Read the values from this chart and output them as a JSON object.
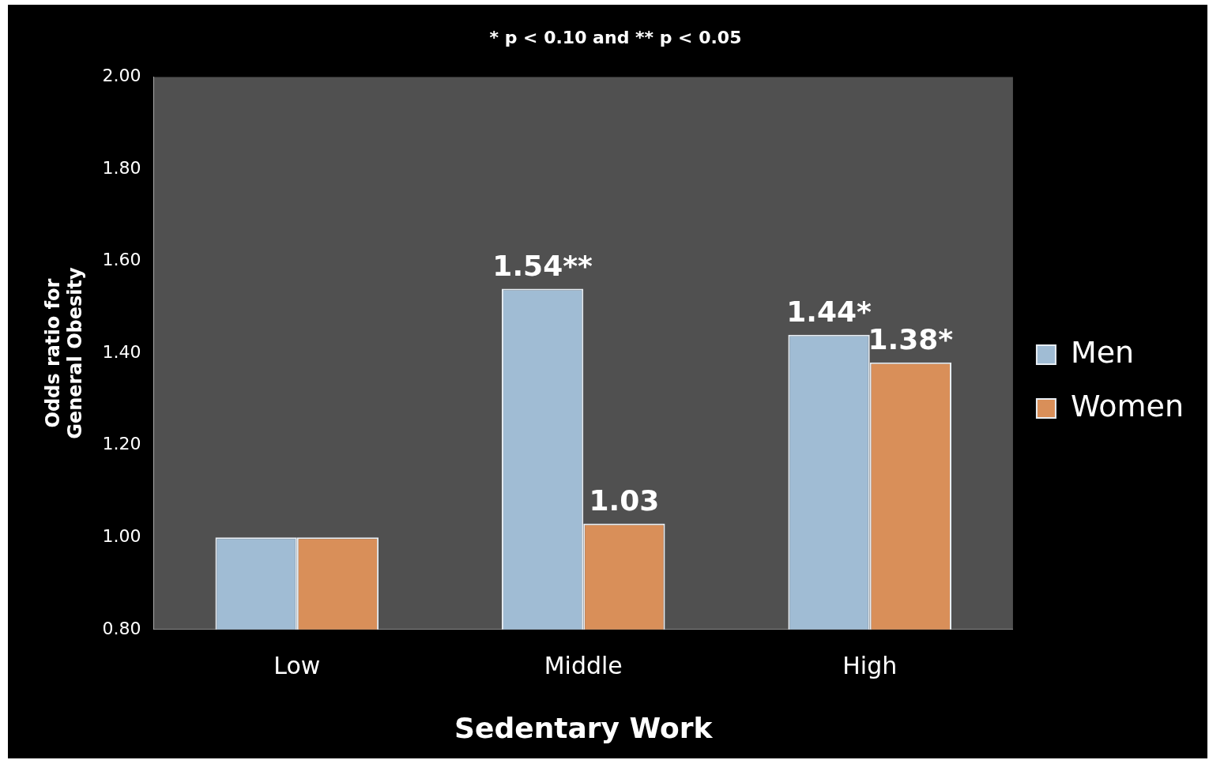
{
  "chart_data": {
    "type": "bar",
    "title": "* p < 0.10 and ** p < 0.05",
    "xlabel": "Sedentary Work",
    "ylabel": "Odds ratio for General Obesity",
    "categories": [
      "Low",
      "Middle",
      "High"
    ],
    "series": [
      {
        "name": "Men",
        "color": "#a0bcd4",
        "values": [
          1.0,
          1.54,
          1.44
        ],
        "value_labels": [
          null,
          "1.54**",
          "1.44*"
        ]
      },
      {
        "name": "Women",
        "color": "#d98f59",
        "values": [
          1.0,
          1.03,
          1.38
        ],
        "value_labels": [
          null,
          "1.03",
          "1.38*"
        ]
      }
    ],
    "ylim": [
      0.8,
      2.0
    ],
    "yticks": [
      {
        "value": 0.8,
        "label": "0.80"
      },
      {
        "value": 1.0,
        "label": "1.00"
      },
      {
        "value": 1.2,
        "label": "1.20"
      },
      {
        "value": 1.4,
        "label": "1.40"
      },
      {
        "value": 1.6,
        "label": "1.60"
      },
      {
        "value": 1.8,
        "label": "1.80"
      },
      {
        "value": 2.0,
        "label": "2.00"
      }
    ],
    "grid": false,
    "legend": "right"
  }
}
